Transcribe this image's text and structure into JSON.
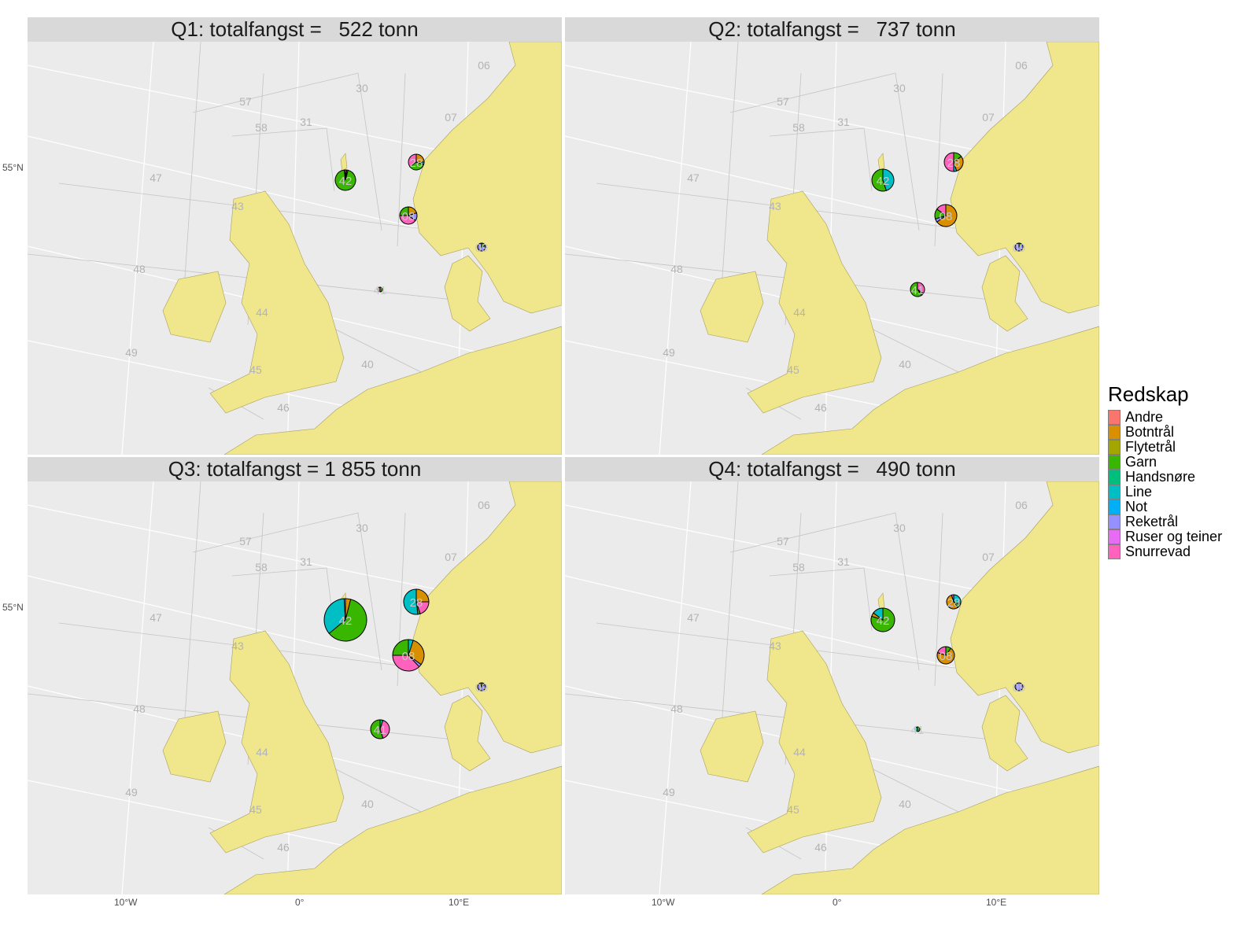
{
  "legend": {
    "title": "Redskap",
    "items": [
      {
        "label": "Andre",
        "color": "#F8766D"
      },
      {
        "label": "Botntrål",
        "color": "#D89000"
      },
      {
        "label": "Flytetrål",
        "color": "#A3A500"
      },
      {
        "label": "Garn",
        "color": "#39B600"
      },
      {
        "label": "Handsnøre",
        "color": "#00BF7D"
      },
      {
        "label": "Line",
        "color": "#00BFC4"
      },
      {
        "label": "Not",
        "color": "#00B0F6"
      },
      {
        "label": "Reketrål",
        "color": "#9590FF"
      },
      {
        "label": "Ruser og teiner",
        "color": "#E76BF3"
      },
      {
        "label": "Snurrevad",
        "color": "#FF62BC"
      }
    ]
  },
  "axes": {
    "x_ticks": [
      "10°W",
      "0°",
      "10°E"
    ],
    "y_ticks": [
      "55°N"
    ]
  },
  "colors": {
    "sea": "#EBEBEB",
    "land": "#F0E68C",
    "strip": "#D9D9D9"
  },
  "area_labels": [
    "06",
    "30",
    "57",
    "58",
    "31",
    "07",
    "47",
    "43",
    "48",
    "44",
    "49",
    "45",
    "40",
    "46"
  ],
  "panels": [
    {
      "title": "Q1: totalfangst =   522 tonn",
      "pies": [
        {
          "area": "42",
          "slices": [
            [
              "Andre",
              0.02
            ],
            [
              "Botntrål",
              0.02
            ],
            [
              "Garn",
              0.94
            ],
            [
              "Snurrevad",
              0.02
            ]
          ]
        },
        {
          "area": "28",
          "slices": [
            [
              "Botntrål",
              0.25
            ],
            [
              "Line",
              0.05
            ],
            [
              "Garn",
              0.35
            ],
            [
              "Snurrevad",
              0.35
            ]
          ]
        },
        {
          "area": "08",
          "slices": [
            [
              "Botntrål",
              0.2
            ],
            [
              "Reketrål",
              0.15
            ],
            [
              "Snurrevad",
              0.4
            ],
            [
              "Garn",
              0.25
            ]
          ]
        },
        {
          "area": "09",
          "slices": [
            [
              "Garn",
              0.2
            ],
            [
              "Reketrål",
              0.8
            ]
          ]
        },
        {
          "area": "41",
          "slices": [
            [
              "Garn",
              0.5
            ],
            [
              "Snurrevad",
              0.5
            ]
          ]
        }
      ]
    },
    {
      "title": "Q2: totalfangst =   737 tonn",
      "pies": [
        {
          "area": "42",
          "slices": [
            [
              "Line",
              0.45
            ],
            [
              "Garn",
              0.55
            ]
          ]
        },
        {
          "area": "28",
          "slices": [
            [
              "Garn",
              0.15
            ],
            [
              "Botntrål",
              0.3
            ],
            [
              "Line",
              0.05
            ],
            [
              "Snurrevad",
              0.5
            ]
          ]
        },
        {
          "area": "08",
          "slices": [
            [
              "Botntrål",
              0.65
            ],
            [
              "Reketrål",
              0.05
            ],
            [
              "Garn",
              0.15
            ],
            [
              "Snurrevad",
              0.15
            ]
          ]
        },
        {
          "area": "09",
          "slices": [
            [
              "Garn",
              0.1
            ],
            [
              "Reketrål",
              0.9
            ]
          ]
        },
        {
          "area": "41",
          "slices": [
            [
              "Snurrevad",
              0.35
            ],
            [
              "Line",
              0.05
            ],
            [
              "Garn",
              0.6
            ]
          ]
        }
      ]
    },
    {
      "title": "Q3: totalfangst = 1 855 tonn",
      "pies": [
        {
          "area": "42",
          "slices": [
            [
              "Botntrål",
              0.04
            ],
            [
              "Garn",
              0.6
            ],
            [
              "Line",
              0.35
            ],
            [
              "Reketrål",
              0.01
            ]
          ]
        },
        {
          "area": "28",
          "slices": [
            [
              "Botntrål",
              0.25
            ],
            [
              "Snurrevad",
              0.2
            ],
            [
              "Garn",
              0.03
            ],
            [
              "Line",
              0.52
            ]
          ]
        },
        {
          "area": "08",
          "slices": [
            [
              "Line",
              0.05
            ],
            [
              "Botntrål",
              0.3
            ],
            [
              "Reketrål",
              0.03
            ],
            [
              "Snurrevad",
              0.37
            ],
            [
              "Garn",
              0.25
            ]
          ]
        },
        {
          "area": "09",
          "slices": [
            [
              "Garn",
              0.15
            ],
            [
              "Reketrål",
              0.75
            ],
            [
              "Snurrevad",
              0.1
            ]
          ]
        },
        {
          "area": "41",
          "slices": [
            [
              "Handsnøre",
              0.05
            ],
            [
              "Snurrevad",
              0.4
            ],
            [
              "Garn",
              0.55
            ]
          ]
        }
      ]
    },
    {
      "title": "Q4: totalfangst =   490 tonn",
      "pies": [
        {
          "area": "42",
          "slices": [
            [
              "Garn",
              0.8
            ],
            [
              "Botntrål",
              0.05
            ],
            [
              "Line",
              0.15
            ]
          ]
        },
        {
          "area": "28",
          "slices": [
            [
              "Line",
              0.3
            ],
            [
              "Garn",
              0.1
            ],
            [
              "Botntrål",
              0.55
            ],
            [
              "Snurrevad",
              0.05
            ]
          ]
        },
        {
          "area": "08",
          "slices": [
            [
              "Garn",
              0.1
            ],
            [
              "Botntrål",
              0.7
            ],
            [
              "Snurrevad",
              0.2
            ]
          ]
        },
        {
          "area": "09",
          "slices": [
            [
              "Reketrål",
              1.0
            ]
          ]
        },
        {
          "area": "41",
          "slices": [
            [
              "Garn",
              0.5
            ],
            [
              "Line",
              0.5
            ]
          ]
        }
      ]
    }
  ]
}
